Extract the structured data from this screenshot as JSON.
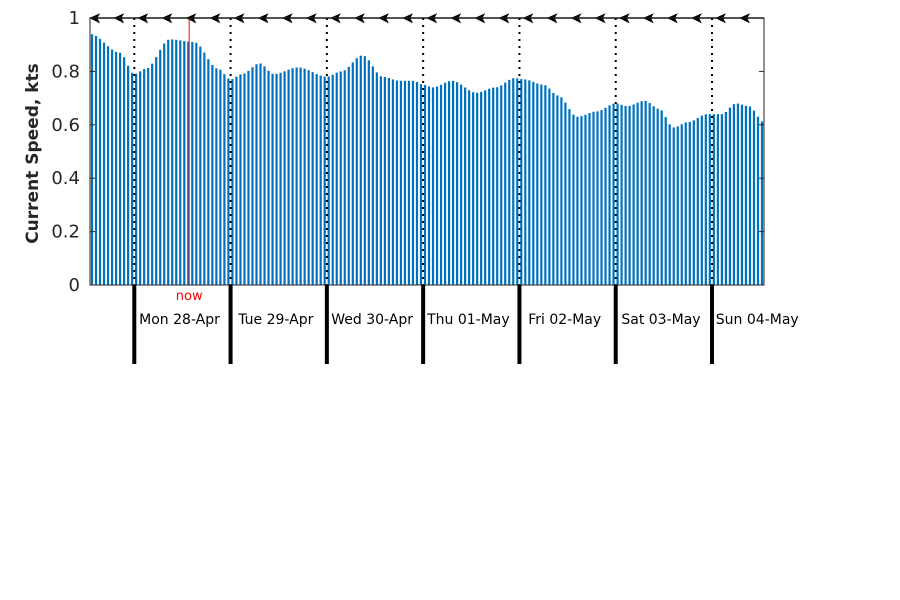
{
  "chart_data": {
    "type": "bar",
    "ylabel": "Current Speed, kts",
    "ylim": [
      0,
      1
    ],
    "yticks": [
      "0",
      "0.2",
      "0.4",
      "0.6",
      "0.8",
      "1"
    ],
    "grid": false,
    "bar_color": "#0072BD",
    "now_color": "#FF0000",
    "now_label": "now",
    "now_x": 0.57,
    "days": [
      "Mon 28-Apr",
      "Tue 29-Apr",
      "Wed 30-Apr",
      "Thu 01-May",
      "Fri 02-May",
      "Sat 03-May",
      "Sun 04-May"
    ],
    "day_boundaries_x": [
      0,
      1,
      2,
      3,
      4,
      5,
      6
    ],
    "x_range": [
      -0.46,
      6.54
    ],
    "direction_arrows": "pointing left (westward flow)",
    "speed_keypoints": [
      [
        -0.46,
        0.94
      ],
      [
        -0.15,
        0.87
      ],
      [
        0.0,
        0.79
      ],
      [
        0.12,
        0.81
      ],
      [
        0.37,
        0.92
      ],
      [
        0.62,
        0.91
      ],
      [
        0.87,
        0.81
      ],
      [
        1.0,
        0.77
      ],
      [
        1.12,
        0.79
      ],
      [
        1.3,
        0.83
      ],
      [
        1.45,
        0.79
      ],
      [
        1.7,
        0.815
      ],
      [
        2.0,
        0.78
      ],
      [
        2.15,
        0.8
      ],
      [
        2.37,
        0.86
      ],
      [
        2.58,
        0.78
      ],
      [
        2.75,
        0.765
      ],
      [
        2.9,
        0.765
      ],
      [
        3.0,
        0.75
      ],
      [
        3.1,
        0.74
      ],
      [
        3.3,
        0.765
      ],
      [
        3.55,
        0.72
      ],
      [
        3.75,
        0.74
      ],
      [
        3.95,
        0.775
      ],
      [
        4.05,
        0.77
      ],
      [
        4.25,
        0.75
      ],
      [
        4.4,
        0.71
      ],
      [
        4.6,
        0.63
      ],
      [
        4.8,
        0.65
      ],
      [
        5.0,
        0.68
      ],
      [
        5.12,
        0.67
      ],
      [
        5.3,
        0.69
      ],
      [
        5.45,
        0.66
      ],
      [
        5.6,
        0.59
      ],
      [
        5.75,
        0.61
      ],
      [
        5.95,
        0.64
      ],
      [
        6.1,
        0.64
      ],
      [
        6.25,
        0.68
      ],
      [
        6.38,
        0.67
      ],
      [
        6.54,
        0.61
      ]
    ]
  }
}
